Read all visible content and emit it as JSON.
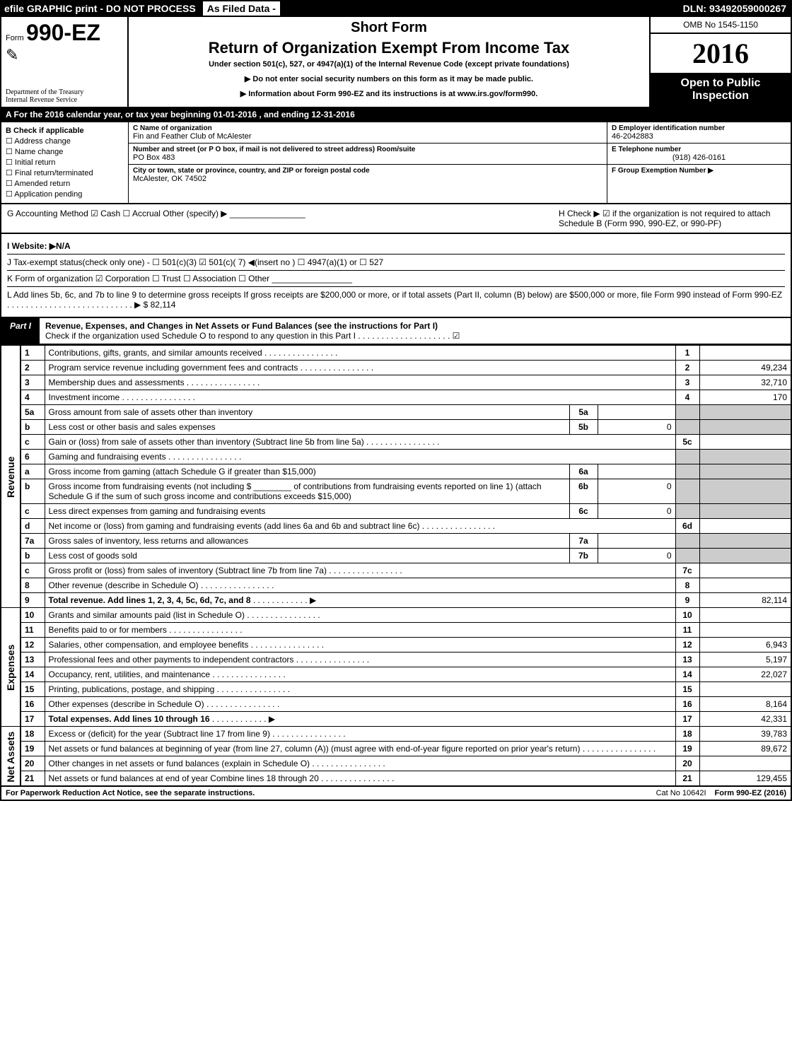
{
  "topbar": {
    "efile": "efile GRAPHIC print - DO NOT PROCESS",
    "asfiled": "As Filed Data -",
    "dln": "DLN: 93492059000267"
  },
  "header": {
    "form_prefix": "Form",
    "form_no": "990-EZ",
    "short_form": "Short Form",
    "title": "Return of Organization Exempt From Income Tax",
    "subtitle": "Under section 501(c), 527, or 4947(a)(1) of the Internal Revenue Code (except private foundations)",
    "instr1": "▶ Do not enter social security numbers on this form as it may be made public.",
    "instr2": "▶ Information about Form 990-EZ and its instructions is at www.irs.gov/form990.",
    "treasury1": "Department of the Treasury",
    "treasury2": "Internal Revenue Service",
    "omb": "OMB No 1545-1150",
    "year": "2016",
    "open1": "Open to Public",
    "open2": "Inspection"
  },
  "rowA": "A  For the 2016 calendar year, or tax year beginning 01-01-2016            , and ending 12-31-2016",
  "colB": {
    "title": "B  Check if applicable",
    "items": [
      "☐ Address change",
      "☐ Name change",
      "☐ Initial return",
      "☐ Final return/terminated",
      "☐ Amended return",
      "☐ Application pending"
    ]
  },
  "colC": {
    "c_lbl": "C Name of organization",
    "c_val": "Fin and Feather Club of McAlester",
    "addr_lbl": "Number and street (or P O box, if mail is not delivered to street address)  Room/suite",
    "addr_val": "PO Box 483",
    "city_lbl": "City or town, state or province, country, and ZIP or foreign postal code",
    "city_val": "McAlester, OK  74502"
  },
  "colD": {
    "d_lbl": "D Employer identification number",
    "d_val": "46-2042883",
    "e_lbl": "E Telephone number",
    "e_val": "(918) 426-0161",
    "f_lbl": "F Group Exemption Number   ▶",
    "f_val": ""
  },
  "lineG": "G Accounting Method    ☑ Cash   ☐ Accrual   Other (specify) ▶ ________________",
  "lineH": "H   Check ▶   ☑  if the organization is not required to attach Schedule B (Form 990, 990-EZ, or 990-PF)",
  "lineI": "I Website: ▶N/A",
  "lineJ": "J Tax-exempt status(check only one) - ☐ 501(c)(3)  ☑ 501(c)( 7) ◀(insert no )  ☐ 4947(a)(1) or  ☐ 527",
  "lineK": "K Form of organization    ☑ Corporation   ☐ Trust   ☐ Association   ☐ Other  _________________",
  "lineL": "L Add lines 5b, 6c, and 7b to line 9 to determine gross receipts  If gross receipts are $200,000 or more, or if total assets (Part II, column (B) below) are $500,000 or more, file Form 990 instead of Form 990-EZ  . . . . . . . . . . . . . . . . . . . . . . . . . . .   ▶ $ 82,114",
  "part1": {
    "tag": "Part I",
    "title": "Revenue, Expenses, and Changes in Net Assets or Fund Balances (see the instructions for Part I)",
    "check": "Check if the organization used Schedule O to respond to any question in this Part I . . . . . . . . . . . . . . . . . . . .  ☑"
  },
  "vlabels": {
    "rev": "Revenue",
    "exp": "Expenses",
    "net": "Net Assets"
  },
  "rows": [
    {
      "n": "1",
      "d": "Contributions, gifts, grants, and similar amounts received",
      "box": "1",
      "val": ""
    },
    {
      "n": "2",
      "d": "Program service revenue including government fees and contracts",
      "box": "2",
      "val": "49,234"
    },
    {
      "n": "3",
      "d": "Membership dues and assessments",
      "box": "3",
      "val": "32,710"
    },
    {
      "n": "4",
      "d": "Investment income",
      "box": "4",
      "val": "170"
    },
    {
      "n": "5a",
      "d": "Gross amount from sale of assets other than inventory",
      "sub": "5a",
      "subval": "",
      "shadebox": true
    },
    {
      "n": "b",
      "d": "Less  cost or other basis and sales expenses",
      "sub": "5b",
      "subval": "0",
      "shadebox": true
    },
    {
      "n": "c",
      "d": "Gain or (loss) from sale of assets other than inventory (Subtract line 5b from line 5a)",
      "box": "5c",
      "val": ""
    },
    {
      "n": "6",
      "d": "Gaming and fundraising events",
      "shadebox": true,
      "shadeval": true
    },
    {
      "n": "a",
      "d": "Gross income from gaming (attach Schedule G if greater than $15,000)",
      "sub": "6a",
      "subval": "",
      "shadebox": true
    },
    {
      "n": "b",
      "d": "Gross income from fundraising events (not including $ ________ of contributions from fundraising events reported on line 1) (attach Schedule G if the sum of such gross income and contributions exceeds $15,000)",
      "sub": "6b",
      "subval": "0",
      "shadebox": true
    },
    {
      "n": "c",
      "d": "Less  direct expenses from gaming and fundraising events",
      "sub": "6c",
      "subval": "0",
      "shadebox": true
    },
    {
      "n": "d",
      "d": "Net income or (loss) from gaming and fundraising events (add lines 6a and 6b and subtract line 6c)",
      "box": "6d",
      "val": ""
    },
    {
      "n": "7a",
      "d": "Gross sales of inventory, less returns and allowances",
      "sub": "7a",
      "subval": "",
      "shadebox": true
    },
    {
      "n": "b",
      "d": "Less  cost of goods sold",
      "sub": "7b",
      "subval": "0",
      "shadebox": true
    },
    {
      "n": "c",
      "d": "Gross profit or (loss) from sales of inventory (Subtract line 7b from line 7a)",
      "box": "7c",
      "val": ""
    },
    {
      "n": "8",
      "d": "Other revenue (describe in Schedule O)",
      "box": "8",
      "val": ""
    },
    {
      "n": "9",
      "d": "Total revenue. Add lines 1, 2, 3, 4, 5c, 6d, 7c, and 8",
      "box": "9",
      "val": "82,114",
      "bold": true,
      "arrow": true
    }
  ],
  "exp_rows": [
    {
      "n": "10",
      "d": "Grants and similar amounts paid (list in Schedule O)",
      "box": "10",
      "val": ""
    },
    {
      "n": "11",
      "d": "Benefits paid to or for members",
      "box": "11",
      "val": ""
    },
    {
      "n": "12",
      "d": "Salaries, other compensation, and employee benefits",
      "box": "12",
      "val": "6,943"
    },
    {
      "n": "13",
      "d": "Professional fees and other payments to independent contractors",
      "box": "13",
      "val": "5,197"
    },
    {
      "n": "14",
      "d": "Occupancy, rent, utilities, and maintenance",
      "box": "14",
      "val": "22,027"
    },
    {
      "n": "15",
      "d": "Printing, publications, postage, and shipping",
      "box": "15",
      "val": ""
    },
    {
      "n": "16",
      "d": "Other expenses (describe in Schedule O)",
      "box": "16",
      "val": "8,164"
    },
    {
      "n": "17",
      "d": "Total expenses. Add lines 10 through 16",
      "box": "17",
      "val": "42,331",
      "bold": true,
      "arrow": true
    }
  ],
  "net_rows": [
    {
      "n": "18",
      "d": "Excess or (deficit) for the year (Subtract line 17 from line 9)",
      "box": "18",
      "val": "39,783"
    },
    {
      "n": "19",
      "d": "Net assets or fund balances at beginning of year (from line 27, column (A)) (must agree with end-of-year figure reported on prior year's return)",
      "box": "19",
      "val": "89,672"
    },
    {
      "n": "20",
      "d": "Other changes in net assets or fund balances (explain in Schedule O)",
      "box": "20",
      "val": ""
    },
    {
      "n": "21",
      "d": "Net assets or fund balances at end of year  Combine lines 18 through 20",
      "box": "21",
      "val": "129,455"
    }
  ],
  "footer": {
    "left": "For Paperwork Reduction Act Notice, see the separate instructions.",
    "mid": "Cat No  10642I",
    "right": "Form 990-EZ (2016)"
  }
}
